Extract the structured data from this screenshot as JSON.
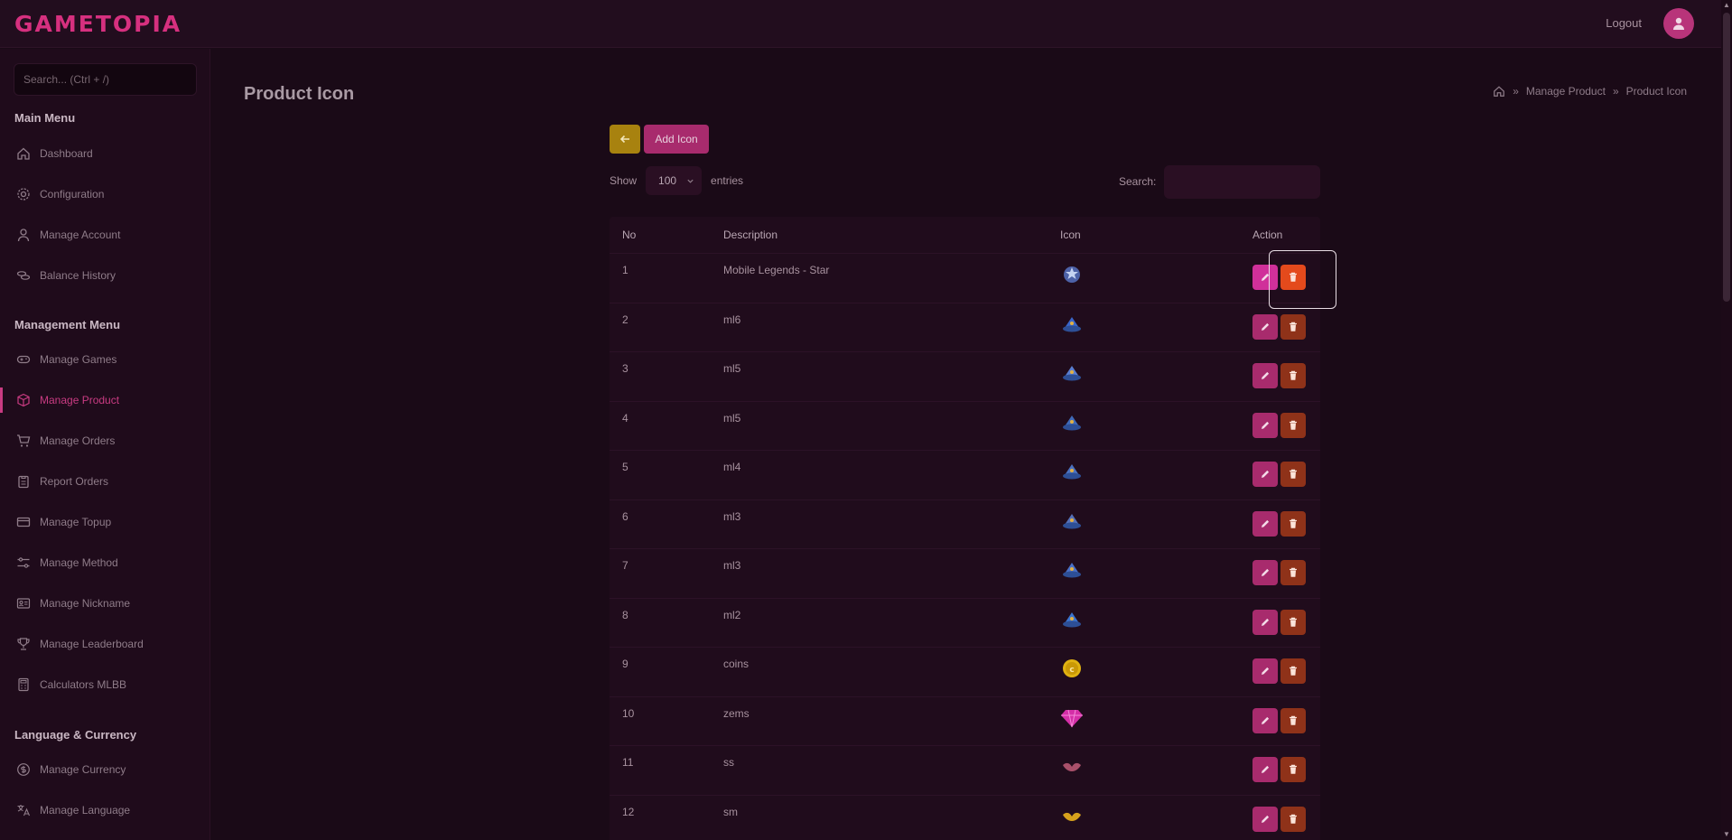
{
  "app": {
    "logo": "GAMETOPIA",
    "logout": "Logout"
  },
  "sidebar": {
    "search_placeholder": "Search... (Ctrl + /)",
    "main_heading": "Main Menu",
    "main_items": [
      {
        "label": "Dashboard",
        "icon": "home-icon"
      },
      {
        "label": "Configuration",
        "icon": "gear-icon"
      },
      {
        "label": "Manage Account",
        "icon": "user-icon"
      },
      {
        "label": "Balance History",
        "icon": "coins-icon"
      }
    ],
    "management_heading": "Management Menu",
    "management_items": [
      {
        "label": "Manage Games",
        "icon": "gamepad-icon"
      },
      {
        "label": "Manage Product",
        "icon": "box-icon"
      },
      {
        "label": "Manage Orders",
        "icon": "cart-icon"
      },
      {
        "label": "Report Orders",
        "icon": "clipboard-icon"
      },
      {
        "label": "Manage Topup",
        "icon": "card-icon"
      },
      {
        "label": "Manage Method",
        "icon": "sliders-icon"
      },
      {
        "label": "Manage Nickname",
        "icon": "id-card-icon"
      },
      {
        "label": "Manage Leaderboard",
        "icon": "trophy-icon"
      },
      {
        "label": "Calculators MLBB",
        "icon": "calculator-icon"
      }
    ],
    "lang_heading": "Language & Currency",
    "lang_items": [
      {
        "label": "Manage Currency",
        "icon": "dollar-icon"
      },
      {
        "label": "Manage Language",
        "icon": "translate-icon"
      }
    ]
  },
  "page": {
    "title": "Product Icon",
    "breadcrumb": [
      "Manage Product",
      "Product Icon"
    ],
    "add_button": "Add Icon",
    "show_label": "Show",
    "entries_value": "100",
    "entries_label": "entries",
    "search_label": "Search:"
  },
  "table": {
    "headers": [
      "No",
      "Description",
      "Icon",
      "Action"
    ],
    "rows": [
      {
        "no": "1",
        "desc": "Mobile Legends - Star",
        "icon": "hero-star-icon"
      },
      {
        "no": "2",
        "desc": "ml6",
        "icon": "rank-hat-icon"
      },
      {
        "no": "3",
        "desc": "ml5",
        "icon": "rank-hat-icon"
      },
      {
        "no": "4",
        "desc": "ml5",
        "icon": "rank-hat-icon"
      },
      {
        "no": "5",
        "desc": "ml4",
        "icon": "rank-hat-icon"
      },
      {
        "no": "6",
        "desc": "ml3",
        "icon": "rank-hat-icon"
      },
      {
        "no": "7",
        "desc": "ml3",
        "icon": "rank-hat-icon"
      },
      {
        "no": "8",
        "desc": "ml2",
        "icon": "rank-hat-icon"
      },
      {
        "no": "9",
        "desc": "coins",
        "icon": "coin-icon"
      },
      {
        "no": "10",
        "desc": "zems",
        "icon": "gem-icon"
      },
      {
        "no": "11",
        "desc": "ss",
        "icon": "wing-icon"
      },
      {
        "no": "12",
        "desc": "sm",
        "icon": "wing-icon"
      }
    ]
  },
  "colors": {
    "accent": "#c93b82",
    "back_button": "#a8820f",
    "delete": "#8f3219",
    "delete_active": "#e44a1c"
  }
}
